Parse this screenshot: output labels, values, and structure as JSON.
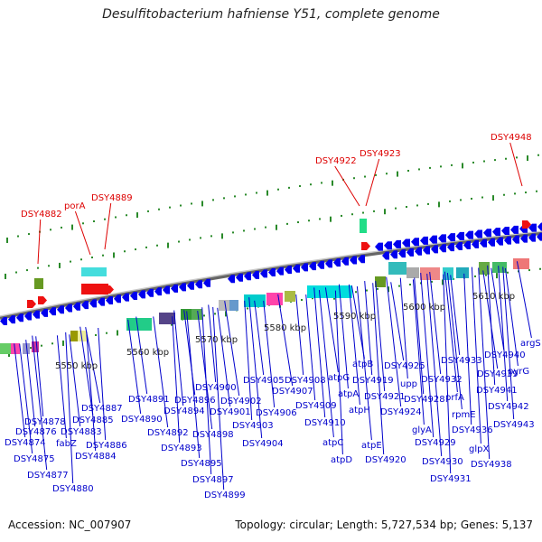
{
  "title": "Desulfitobacterium hafniense Y51, complete genome",
  "footer": {
    "accession": "Accession: NC_007907",
    "topology": "Topology: circular; Length: 5,727,534 bp; Genes: 5,137"
  },
  "colors": {
    "gene_arrow": "#0000ee",
    "highlight_label": "#dd0000",
    "label": "#0000cc",
    "backbone": "#888888",
    "tick_dot": "#2a8a2a"
  },
  "scale_labels": [
    "5550 kbp",
    "5560 kbp",
    "5570 kbp",
    "5580 kbp",
    "5590 kbp",
    "5600 kbp",
    "5610 kbp"
  ],
  "highlight_labels": [
    "DSY4882",
    "porA",
    "DSY4889",
    "DSY4922",
    "DSY4923",
    "DSY4948"
  ],
  "gene_labels": [
    "DSY4878",
    "DSY4876",
    "DSY4874",
    "DSY4875",
    "DSY4877",
    "DSY4880",
    "fabZ",
    "DSY4883",
    "DSY4885",
    "DSY4887",
    "DSY4886",
    "DSY4884",
    "DSY4891",
    "DSY4890",
    "DSY4892",
    "DSY4893",
    "DSY4894",
    "DSY4896",
    "DSY4895",
    "DSY4898",
    "DSY4900",
    "DSY4897",
    "DSY4899",
    "DSY4901",
    "DSY4902",
    "DSY4903",
    "DSY4905",
    "DSY4906",
    "DSY4904",
    "DSY4907",
    "DSY4908",
    "DSY4909",
    "DSY4910",
    "atpG",
    "atpC",
    "atpD",
    "atpA",
    "atpH",
    "atpB",
    "atpE",
    "DSY4919",
    "DSY4921",
    "DSY4920",
    "DSY4925",
    "DSY4924",
    "upp",
    "DSY4928",
    "glyA",
    "DSY4929",
    "DSY4930",
    "DSY4931",
    "DSY4933",
    "DSY4932",
    "prfA",
    "rpmE",
    "DSY4936",
    "glpX",
    "DSY4938",
    "DSY4940",
    "DSY4939",
    "DSY4941",
    "DSY4942",
    "DSY4943",
    "pyrG",
    "argS"
  ]
}
